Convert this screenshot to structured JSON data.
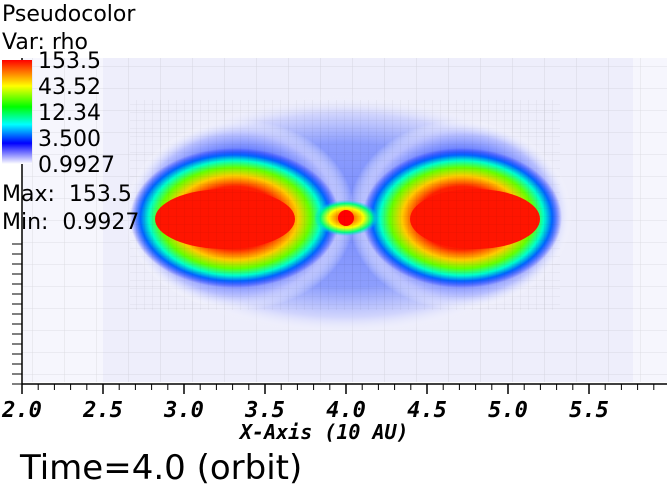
{
  "legend": {
    "plot_type": "Pseudocolor",
    "variable": "Var: rho",
    "ticks": [
      "153.5",
      "43.52",
      "12.34",
      "3.500",
      "0.9927"
    ],
    "max_label": "Max:  153.5",
    "min_label": "Min:  0.9927"
  },
  "x_axis": {
    "title": "X-Axis (10 AU)",
    "tick_labels": [
      "2.0",
      "2.5",
      "3.0",
      "3.5",
      "4.0",
      "4.5",
      "5.0",
      "5.5"
    ]
  },
  "time_label": "Time=4.0 (orbit)",
  "colors": {
    "high": "#ff0000",
    "mid_high": "#ffff00",
    "mid": "#00ff00",
    "mid_low": "#00ffff",
    "low": "#0000ff",
    "floor": "#ffffff"
  }
}
